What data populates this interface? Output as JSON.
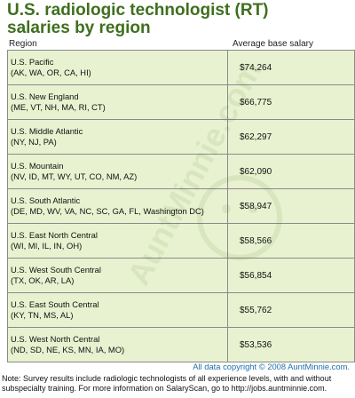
{
  "title_line1": "U.S. radiologic technologist (RT)",
  "title_line2": "salaries by region",
  "header_region": "Region",
  "header_salary": "Average base salary",
  "watermark_text": "AuntMinnie.com",
  "chart_data": {
    "type": "table",
    "columns": [
      "Region",
      "Average base salary"
    ],
    "rows": [
      {
        "region": "U.S. Pacific",
        "states": "(AK, WA, OR, CA, HI)",
        "salary": "$74,264",
        "value": 74264
      },
      {
        "region": "U.S. New England",
        "states": "(ME, VT, NH, MA, RI, CT)",
        "salary": "$66,775",
        "value": 66775
      },
      {
        "region": "U.S. Middle Atlantic",
        "states": "(NY, NJ, PA)",
        "salary": "$62,297",
        "value": 62297
      },
      {
        "region": "U.S. Mountain",
        "states": "(NV, ID, MT, WY, UT, CO, NM, AZ)",
        "salary": "$62,090",
        "value": 62090
      },
      {
        "region": "U.S. South Atlantic",
        "states": "(DE, MD, WV, VA, NC, SC, GA, FL, Washington DC)",
        "salary": "$58,947",
        "value": 58947
      },
      {
        "region": "U.S. East North Central",
        "states": "(WI, MI, IL, IN, OH)",
        "salary": "$58,566",
        "value": 58566
      },
      {
        "region": "U.S. West South Central",
        "states": "(TX, OK, AR, LA)",
        "salary": "$56,854",
        "value": 56854
      },
      {
        "region": "U.S. East South Central",
        "states": "(KY, TN, MS, AL)",
        "salary": "$55,762",
        "value": 55762
      },
      {
        "region": "U.S. West North Central",
        "states": "(ND, SD, NE, KS, MN, IA, MO)",
        "salary": "$53,536",
        "value": 53536
      }
    ]
  },
  "copyright": "All data copyright © 2008 AuntMinnie.com.",
  "note": "Note: Survey results include radiologic technologists of all experience levels, with and without subspecialty training. For more information on SalaryScan, go to http://jobs.auntminnie.com."
}
